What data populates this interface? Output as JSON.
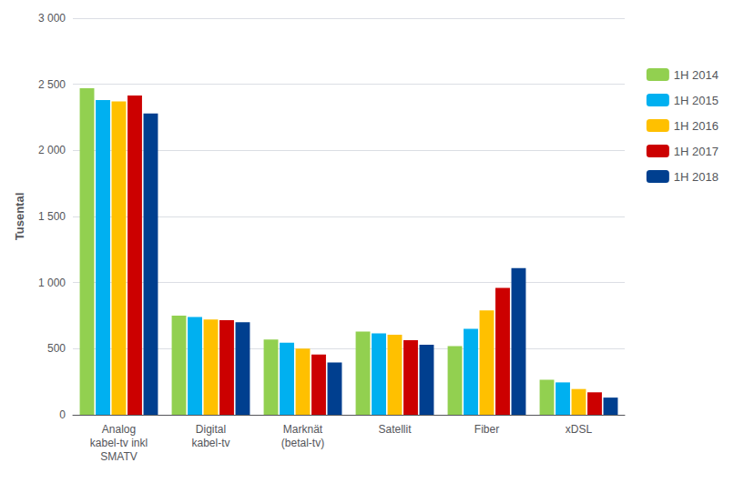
{
  "chart_data": {
    "type": "bar",
    "categories": [
      "Analog\nkabel-tv inkl\nSMATV",
      "Digital\nkabel-tv",
      "Marknät\n(betal-tv)",
      "Satellit",
      "Fiber",
      "xDSL"
    ],
    "series": [
      {
        "name": "1H 2014",
        "color": "#92d050",
        "values": [
          2470,
          750,
          570,
          630,
          520,
          265
        ]
      },
      {
        "name": "1H 2015",
        "color": "#00b0f0",
        "values": [
          2380,
          740,
          545,
          615,
          650,
          245
        ]
      },
      {
        "name": "1H 2016",
        "color": "#ffc000",
        "values": [
          2370,
          720,
          500,
          605,
          790,
          195
        ]
      },
      {
        "name": "1H 2017",
        "color": "#cc0000",
        "values": [
          2415,
          715,
          455,
          565,
          960,
          170
        ]
      },
      {
        "name": "1H 2018",
        "color": "#003f8f",
        "values": [
          2280,
          700,
          395,
          530,
          1110,
          130
        ]
      }
    ],
    "ylabel": "Tusental",
    "ylim": [
      0,
      3000
    ],
    "yticks": [
      0,
      500,
      {
        "value": 1000,
        "label": "1 000"
      },
      {
        "value": 1500,
        "label": "1 500"
      },
      {
        "value": 2000,
        "label": "2 000"
      },
      {
        "value": 2500,
        "label": "2 500"
      },
      {
        "value": 3000,
        "label": "3 000"
      }
    ],
    "grid": true,
    "legend": "right"
  }
}
